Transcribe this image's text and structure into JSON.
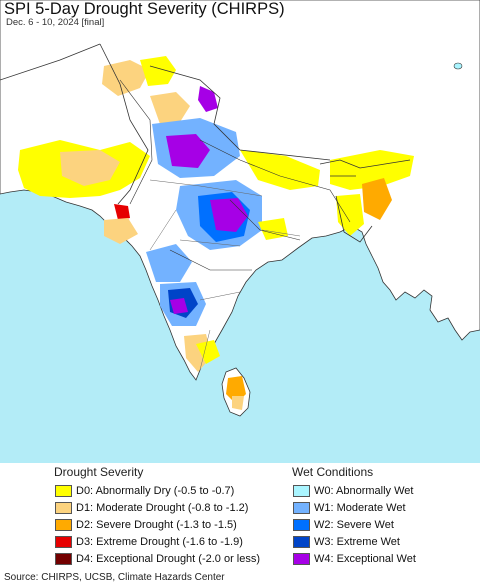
{
  "title": "SPI 5-Day Drought Severity (CHIRPS)",
  "subtitle": "Dec. 6 - 10, 2024 [final]",
  "colors": {
    "ocean": "#b3ecf7",
    "land": "#ffffff",
    "border": "#333333",
    "river": "#333333"
  },
  "legend": {
    "drought": {
      "heading": "Drought Severity",
      "items": [
        {
          "label": "D0: Abnormally Dry (-0.5 to -0.7)",
          "color": "#ffff00"
        },
        {
          "label": "D1: Moderate Drought (-0.8 to -1.2)",
          "color": "#fcd37f"
        },
        {
          "label": "D2: Severe Drought (-1.3 to -1.5)",
          "color": "#ffaa00"
        },
        {
          "label": "D3: Extreme Drought (-1.6 to -1.9)",
          "color": "#e60000"
        },
        {
          "label": "D4: Exceptional Drought (-2.0 or less)",
          "color": "#730000"
        }
      ]
    },
    "wet": {
      "heading": "Wet Conditions",
      "items": [
        {
          "label": "W0: Abnormally Wet",
          "color": "#aaf5ff"
        },
        {
          "label": "W1: Moderate Wet",
          "color": "#73b2ff"
        },
        {
          "label": "W2: Severe Wet",
          "color": "#0070ff"
        },
        {
          "label": "W3: Extreme Wet",
          "color": "#0044c8"
        },
        {
          "label": "W4: Exceptional Wet",
          "color": "#a600e6"
        }
      ]
    }
  },
  "source": "Source: CHIRPS, UCSB, Climate Hazards Center"
}
